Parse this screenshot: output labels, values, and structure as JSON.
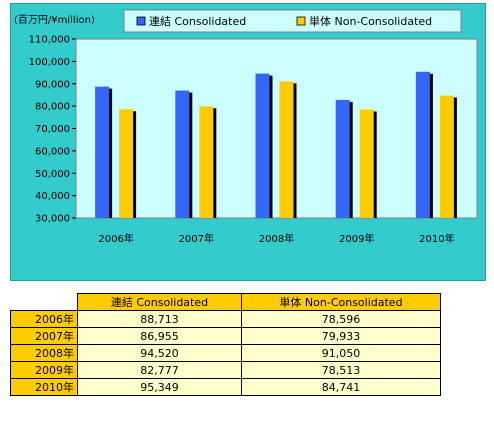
{
  "chart_data": {
    "type": "bar",
    "unit_label": "(百万円/¥million)",
    "categories": [
      "2006年",
      "2007年",
      "2008年",
      "2009年",
      "2010年"
    ],
    "series": [
      {
        "name": "連結 Consolidated",
        "values": [
          88713,
          86955,
          94520,
          82777,
          95349
        ],
        "color": "#3366ff"
      },
      {
        "name": "単体 Non-Consolidated",
        "values": [
          78596,
          79933,
          91050,
          78513,
          84741
        ],
        "color": "#ffcc00"
      }
    ],
    "y_ticks": [
      "30,000",
      "40,000",
      "50,000",
      "60,000",
      "70,000",
      "80,000",
      "90,000",
      "100,000",
      "110,000"
    ],
    "ylim": [
      30000,
      110000
    ],
    "legend_position": "top",
    "colors": {
      "panel": "#33cccc",
      "plot": "#ccffff",
      "legend": "#ccffff"
    }
  },
  "table": {
    "headers": [
      "連結 Consolidated",
      "単体 Non-Consolidated"
    ],
    "rows": [
      {
        "year": "2006年",
        "consolidated": "88,713",
        "non_consolidated": "78,596"
      },
      {
        "year": "2007年",
        "consolidated": "86,955",
        "non_consolidated": "79,933"
      },
      {
        "year": "2008年",
        "consolidated": "94,520",
        "non_consolidated": "91,050"
      },
      {
        "year": "2009年",
        "consolidated": "82,777",
        "non_consolidated": "78,513"
      },
      {
        "year": "2010年",
        "consolidated": "95,349",
        "non_consolidated": "84,741"
      }
    ]
  }
}
